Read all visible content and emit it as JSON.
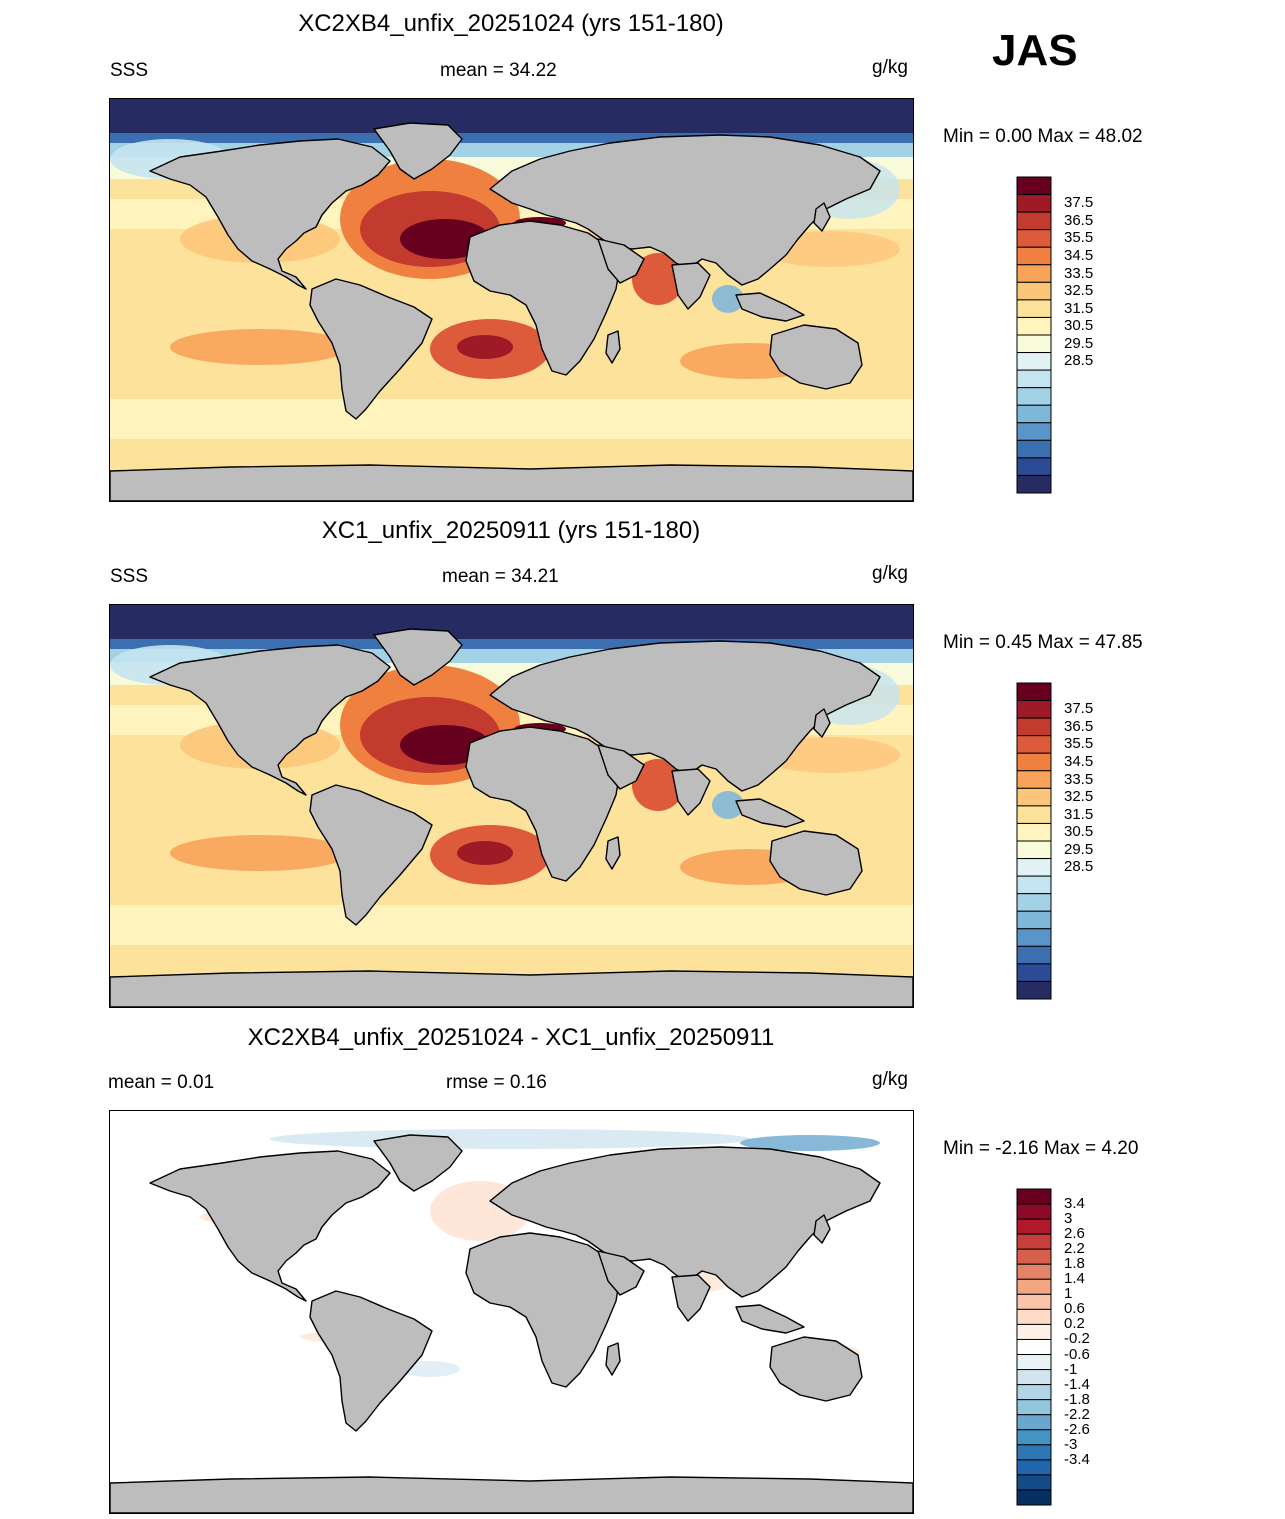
{
  "season": "JAS",
  "panels": [
    {
      "title": "XC2XB4_unfix_20251024 (yrs 151-180)",
      "left_label": "SSS",
      "center_label": "mean =  34.22",
      "units": "g/kg",
      "minmax": "Min =   0.00 Max =  48.02",
      "kind": "field"
    },
    {
      "title": "XC1_unfix_20250911 (yrs 151-180)",
      "left_label": "SSS",
      "center_label": "mean =  34.21",
      "units": "g/kg",
      "minmax": "Min =   0.45 Max =  47.85",
      "kind": "field"
    },
    {
      "title": "XC2XB4_unfix_20251024 - XC1_unfix_20250911",
      "left_label": "mean =   0.01",
      "center_label": "rmse =   0.16",
      "units": "g/kg",
      "minmax": "Min =  -2.16 Max =   4.20",
      "kind": "diff"
    }
  ],
  "field_colorbar": {
    "labels": [
      "37.5",
      "36.5",
      "35.5",
      "34.5",
      "33.5",
      "32.5",
      "31.5",
      "30.5",
      "29.5",
      "28.5"
    ],
    "colors": [
      "#67001f",
      "#9e1a27",
      "#c33a2e",
      "#dd5a3a",
      "#f0803f",
      "#f8a35a",
      "#fcc67a",
      "#fde29b",
      "#fff4be",
      "#f7fbd9",
      "#e1f1f4",
      "#c4e4ef",
      "#a3d1e6",
      "#7fb7d9",
      "#5995c8",
      "#3b6fb0",
      "#2c4b94",
      "#262c62"
    ]
  },
  "diff_colorbar": {
    "labels": [
      "3.4",
      "3",
      "2.6",
      "2.2",
      "1.8",
      "1.4",
      "1",
      "0.6",
      "0.2",
      "-0.2",
      "-0.6",
      "-1",
      "-1.4",
      "-1.8",
      "-2.2",
      "-2.6",
      "-3",
      "-3.4"
    ],
    "colors": [
      "#67001f",
      "#8c0a25",
      "#b2182b",
      "#c63f3d",
      "#d6604d",
      "#e58368",
      "#f4a582",
      "#f9c4a9",
      "#fddbc7",
      "#fff0e8",
      "#ffffff",
      "#e9f2f7",
      "#d1e5f0",
      "#b1d4e7",
      "#92c5de",
      "#6aa6cd",
      "#4393c3",
      "#2f76b4",
      "#2166ac",
      "#144a87",
      "#053061"
    ]
  }
}
